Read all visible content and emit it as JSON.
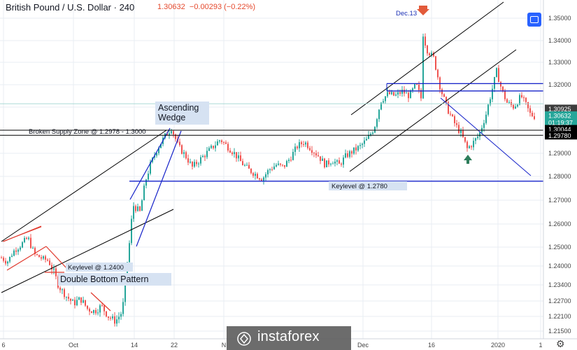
{
  "header": {
    "symbol": "British Pound / U.S. Dollar",
    "interval": "240",
    "last": "1.30632",
    "change": "−0.00293 (−0.22%)"
  },
  "colors": {
    "up": "#26a69a",
    "down": "#ef5350",
    "blue": "#1522c9",
    "black": "#000000",
    "red": "#e03a2e",
    "green": "#2e7d5b",
    "grid": "#e8edf3"
  },
  "chart_data": {
    "type": "candlestick",
    "title": "British Pound / U.S. Dollar",
    "interval": "240",
    "ylim": [
      1.2125,
      1.3575
    ],
    "y_ticks": [
      "1.35000",
      "1.34000",
      "1.33000",
      "1.32000",
      "1.31000",
      "1.29000",
      "1.28000",
      "1.27000",
      "1.26000",
      "1.25000",
      "1.24000",
      "1.23400",
      "1.22700",
      "1.22100",
      "1.21500"
    ],
    "x_ticks": [
      "6",
      "Oct",
      "14",
      "22",
      "N",
      "Dec",
      "16",
      "2020",
      "1"
    ],
    "price_labels": [
      {
        "text": "1.30925",
        "price": 1.30925,
        "bg": "#3d3d3d",
        "fg": "#ffffff"
      },
      {
        "text": "1.30632",
        "price": 1.30632,
        "bg": "#26a69a",
        "fg": "#ffffff"
      },
      {
        "text": "01:19:37",
        "price": 1.3034,
        "bg": "#26a69a",
        "fg": "#ffffff"
      },
      {
        "text": "1.30044",
        "price": 1.30044,
        "bg": "#000000",
        "fg": "#ffffff"
      },
      {
        "text": "1.29780",
        "price": 1.2978,
        "bg": "#000000",
        "fg": "#ffffff"
      }
    ],
    "series": [
      {
        "name": "GBP/USD",
        "points": [
          [
            0,
            1.245
          ],
          [
            10,
            1.242
          ],
          [
            20,
            1.248
          ],
          [
            30,
            1.251
          ],
          [
            40,
            1.254
          ],
          [
            50,
            1.246
          ],
          [
            60,
            1.244
          ],
          [
            68,
            1.243
          ],
          [
            75,
            1.239
          ],
          [
            85,
            1.233
          ],
          [
            95,
            1.229
          ],
          [
            105,
            1.226
          ],
          [
            115,
            1.228
          ],
          [
            125,
            1.224
          ],
          [
            135,
            1.223
          ],
          [
            145,
            1.225
          ],
          [
            155,
            1.221
          ],
          [
            165,
            1.219
          ],
          [
            175,
            1.223
          ],
          [
            183,
            1.245
          ],
          [
            190,
            1.268
          ],
          [
            200,
            1.265
          ],
          [
            208,
            1.278
          ],
          [
            215,
            1.285
          ],
          [
            225,
            1.292
          ],
          [
            235,
            1.297
          ],
          [
            245,
            1.301
          ],
          [
            255,
            1.293
          ],
          [
            265,
            1.289
          ],
          [
            275,
            1.284
          ],
          [
            285,
            1.287
          ],
          [
            295,
            1.29
          ],
          [
            305,
            1.293
          ],
          [
            315,
            1.296
          ],
          [
            325,
            1.293
          ],
          [
            335,
            1.29
          ],
          [
            345,
            1.286
          ],
          [
            355,
            1.283
          ],
          [
            365,
            1.281
          ],
          [
            375,
            1.279
          ],
          [
            385,
            1.283
          ],
          [
            395,
            1.285
          ],
          [
            405,
            1.284
          ],
          [
            415,
            1.288
          ],
          [
            425,
            1.293
          ],
          [
            435,
            1.295
          ],
          [
            445,
            1.292
          ],
          [
            455,
            1.289
          ],
          [
            465,
            1.285
          ],
          [
            475,
            1.287
          ],
          [
            485,
            1.285
          ],
          [
            495,
            1.289
          ],
          [
            505,
            1.291
          ],
          [
            515,
            1.293
          ],
          [
            525,
            1.296
          ],
          [
            535,
            1.301
          ],
          [
            545,
            1.313
          ],
          [
            555,
            1.316
          ],
          [
            565,
            1.315
          ],
          [
            575,
            1.317
          ],
          [
            585,
            1.315
          ],
          [
            595,
            1.32
          ],
          [
            602,
            1.314
          ],
          [
            605,
            1.343
          ],
          [
            610,
            1.336
          ],
          [
            620,
            1.332
          ],
          [
            630,
            1.318
          ],
          [
            640,
            1.309
          ],
          [
            650,
            1.303
          ],
          [
            660,
            1.298
          ],
          [
            668,
            1.292
          ],
          [
            675,
            1.294
          ],
          [
            685,
            1.298
          ],
          [
            695,
            1.307
          ],
          [
            703,
            1.317
          ],
          [
            710,
            1.326
          ],
          [
            718,
            1.317
          ],
          [
            725,
            1.312
          ],
          [
            735,
            1.31
          ],
          [
            745,
            1.315
          ],
          [
            752,
            1.311
          ],
          [
            758,
            1.307
          ],
          [
            764,
            1.306
          ]
        ]
      }
    ],
    "levels": [
      {
        "name": "Keylevel @ 1.2780",
        "price": 1.278,
        "from_idx": 185,
        "to_idx": 777
      },
      {
        "name": "Broken Supply Zone @ 1.2978 - 1.3000",
        "price": 1.3,
        "from_idx": 0,
        "to_idx": 777
      },
      {
        "name": "supply-lower",
        "price": 1.2978,
        "from_idx": 0,
        "to_idx": 777
      },
      {
        "name": "resistance-upper",
        "price": 1.3205,
        "from_idx": 553,
        "to_idx": 777
      },
      {
        "name": "resistance-lower",
        "price": 1.3172,
        "from_idx": 553,
        "to_idx": 777
      }
    ],
    "annotations": [
      {
        "text": "Ascending",
        "kind": "label"
      },
      {
        "text": "Wedge",
        "kind": "label"
      },
      {
        "text": "Broken Supply Zone @ 1.2978 - 1.3000",
        "kind": "label"
      },
      {
        "text": "Keylevel @ 1.2400",
        "kind": "label"
      },
      {
        "text": "Double Bottom Pattern",
        "kind": "label"
      },
      {
        "text": "Keylevel @ 1.2780",
        "kind": "label"
      },
      {
        "text": "Dec.13",
        "kind": "label"
      }
    ]
  },
  "footer": {
    "brand": "instaforex"
  }
}
